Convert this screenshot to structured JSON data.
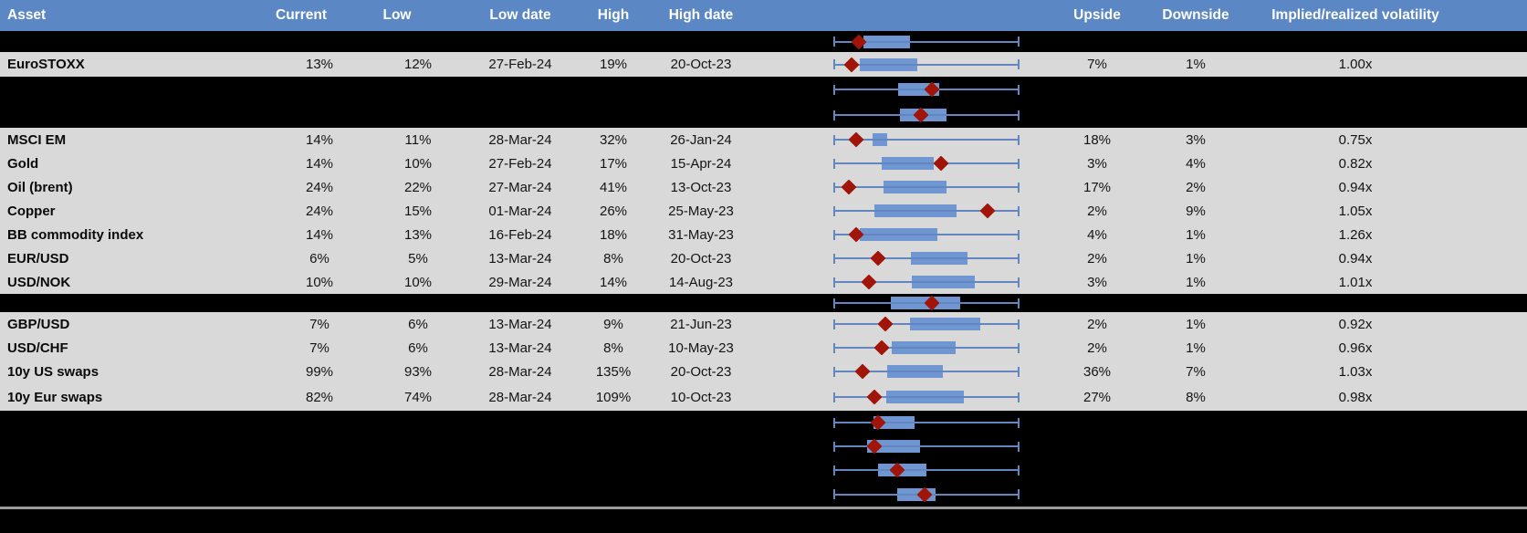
{
  "header": {
    "asset": "Asset",
    "current": "Current",
    "low": "Low",
    "low_date": "Low date",
    "high": "High",
    "high_date": "High date",
    "upside": "Upside",
    "downside": "Downside",
    "impl_real": "Implied/realized volatility"
  },
  "colors": {
    "header_bg": "#5b87c4",
    "header_text": "#ffffff",
    "row_bg": "#d9d9d9",
    "hidden_row_bg": "#000000",
    "box_blue": "#6f96d0",
    "whisker_blue": "#6287c0",
    "diamond_red": "#a11408",
    "divider_gray": "#9b9b9b"
  },
  "chart_data": {
    "type": "boxplot",
    "note": "Per-row horizontal min-max whisker (normalized full span), blue inter-range box and red diamond = current level; positions are fractions of the whisker span",
    "legend_position": "none"
  },
  "rows": [
    {
      "kind": "hidden",
      "box_lo": 0.16,
      "box_hi": 0.41,
      "marker": 0.135
    },
    {
      "kind": "data",
      "asset": "EuroSTOXX",
      "current": "13%",
      "low": "12%",
      "low_date": "27-Feb-24",
      "high": "19%",
      "high_date": "20-Oct-23",
      "upside": "7%",
      "downside": "1%",
      "impl_real": "1.00x",
      "box_lo": 0.14,
      "box_hi": 0.45,
      "marker": 0.1
    },
    {
      "kind": "hidden",
      "box_lo": 0.35,
      "box_hi": 0.57,
      "marker": 0.53
    },
    {
      "kind": "hidden",
      "box_lo": 0.36,
      "box_hi": 0.61,
      "marker": 0.47
    },
    {
      "kind": "data",
      "asset": "MSCI EM",
      "current": "14%",
      "low": "11%",
      "low_date": "28-Mar-24",
      "high": "32%",
      "high_date": "26-Jan-24",
      "upside": "18%",
      "downside": "3%",
      "impl_real": "0.75x",
      "box_lo": 0.21,
      "box_hi": 0.29,
      "marker": 0.12
    },
    {
      "kind": "data",
      "asset": "Gold",
      "current": "14%",
      "low": "10%",
      "low_date": "27-Feb-24",
      "high": "17%",
      "high_date": "15-Apr-24",
      "upside": "3%",
      "downside": "4%",
      "impl_real": "0.82x",
      "box_lo": 0.26,
      "box_hi": 0.54,
      "marker": 0.58
    },
    {
      "kind": "data",
      "asset": "Oil (brent)",
      "current": "24%",
      "low": "22%",
      "low_date": "27-Mar-24",
      "high": "41%",
      "high_date": "13-Oct-23",
      "upside": "17%",
      "downside": "2%",
      "impl_real": "0.94x",
      "box_lo": 0.27,
      "box_hi": 0.61,
      "marker": 0.085
    },
    {
      "kind": "data",
      "asset": "Copper",
      "current": "24%",
      "low": "15%",
      "low_date": "01-Mar-24",
      "high": "26%",
      "high_date": "25-May-23",
      "upside": "2%",
      "downside": "9%",
      "impl_real": "1.05x",
      "box_lo": 0.22,
      "box_hi": 0.66,
      "marker": 0.83
    },
    {
      "kind": "data",
      "asset": "BB commodity index",
      "current": "14%",
      "low": "13%",
      "low_date": "16-Feb-24",
      "high": "18%",
      "high_date": "31-May-23",
      "upside": "4%",
      "downside": "1%",
      "impl_real": "1.26x",
      "box_lo": 0.14,
      "box_hi": 0.56,
      "marker": 0.12
    },
    {
      "kind": "data",
      "asset": "EUR/USD",
      "current": "6%",
      "low": "5%",
      "low_date": "13-Mar-24",
      "high": "8%",
      "high_date": "20-Oct-23",
      "upside": "2%",
      "downside": "1%",
      "impl_real": "0.94x",
      "box_lo": 0.415,
      "box_hi": 0.72,
      "marker": 0.24
    },
    {
      "kind": "data",
      "asset": "USD/NOK",
      "current": "10%",
      "low": "10%",
      "low_date": "29-Mar-24",
      "high": "14%",
      "high_date": "14-Aug-23",
      "upside": "3%",
      "downside": "1%",
      "impl_real": "1.01x",
      "box_lo": 0.42,
      "box_hi": 0.76,
      "marker": 0.19
    },
    {
      "kind": "hidden",
      "box_lo": 0.31,
      "box_hi": 0.68,
      "marker": 0.53
    },
    {
      "kind": "data",
      "asset": "GBP/USD",
      "current": "7%",
      "low": "6%",
      "low_date": "13-Mar-24",
      "high": "9%",
      "high_date": "21-Jun-23",
      "upside": "2%",
      "downside": "1%",
      "impl_real": "0.92x",
      "box_lo": 0.41,
      "box_hi": 0.79,
      "marker": 0.28
    },
    {
      "kind": "data",
      "asset": "USD/CHF",
      "current": "7%",
      "low": "6%",
      "low_date": "13-Mar-24",
      "high": "8%",
      "high_date": "10-May-23",
      "upside": "2%",
      "downside": "1%",
      "impl_real": "0.96x",
      "box_lo": 0.315,
      "box_hi": 0.655,
      "marker": 0.26
    },
    {
      "kind": "data",
      "asset": "10y US swaps",
      "current": "99%",
      "low": "93%",
      "low_date": "28-Mar-24",
      "high": "135%",
      "high_date": "20-Oct-23",
      "upside": "36%",
      "downside": "7%",
      "impl_real": "1.03x",
      "box_lo": 0.29,
      "box_hi": 0.59,
      "marker": 0.155
    },
    {
      "kind": "data",
      "asset": "10y Eur swaps",
      "current": "82%",
      "low": "74%",
      "low_date": "28-Mar-24",
      "high": "109%",
      "high_date": "10-Oct-23",
      "upside": "27%",
      "downside": "8%",
      "impl_real": "0.98x",
      "box_lo": 0.285,
      "box_hi": 0.7,
      "marker": 0.22
    },
    {
      "kind": "hidden",
      "box_lo": 0.215,
      "box_hi": 0.435,
      "marker": 0.24
    },
    {
      "kind": "hidden",
      "box_lo": 0.18,
      "box_hi": 0.465,
      "marker": 0.22
    },
    {
      "kind": "hidden",
      "box_lo": 0.24,
      "box_hi": 0.5,
      "marker": 0.345
    },
    {
      "kind": "hidden",
      "box_lo": 0.345,
      "box_hi": 0.55,
      "marker": 0.49
    }
  ]
}
